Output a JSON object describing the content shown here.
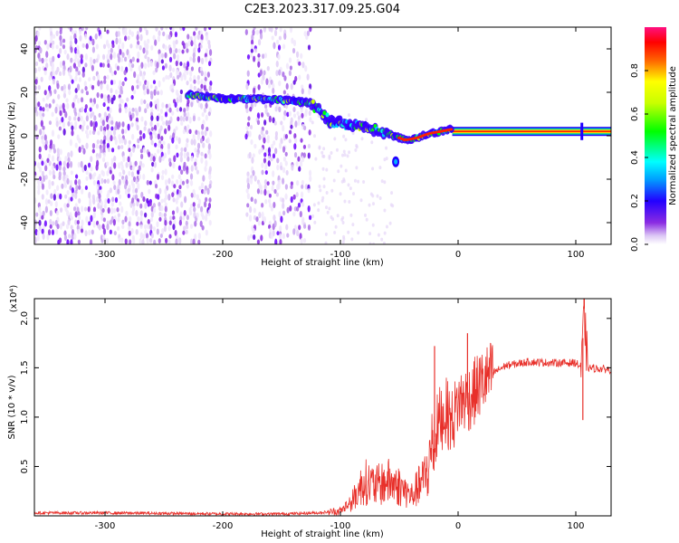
{
  "title": "C2E3.2023.317.09.25.G04",
  "chart_data": [
    {
      "type": "heatmap",
      "title": "C2E3.2023.317.09.25.G04",
      "xlabel": "Height of straight line (km)",
      "ylabel": "Frequency (Hz)",
      "xlim": [
        -360,
        130
      ],
      "ylim": [
        -50,
        50
      ],
      "x_ticks": [
        -300,
        -200,
        -100,
        0,
        100
      ],
      "y_ticks": [
        -40,
        -20,
        0,
        20,
        40
      ],
      "colorbar": {
        "label": "Normalized spectral amplitude",
        "range": [
          0,
          1
        ],
        "ticks": [
          0.0,
          0.2,
          0.4,
          0.6,
          0.8
        ]
      },
      "signal_trace": {
        "x": [
          -230,
          -200,
          -170,
          -140,
          -125,
          -110,
          -95,
          -80,
          -65,
          -55,
          -45,
          -35,
          -25,
          -15,
          -5,
          0,
          20,
          60,
          100,
          130
        ],
        "y": [
          19,
          17,
          17,
          16,
          15,
          7,
          5,
          4,
          2,
          0,
          -2,
          -1,
          1,
          2,
          3,
          2,
          2,
          2,
          2,
          2
        ]
      },
      "noise_regions": [
        [
          -360,
          -210
        ],
        [
          -180,
          -125
        ]
      ],
      "grid": false
    },
    {
      "type": "line",
      "xlabel": "Height of straight line (km)",
      "ylabel": "SNR (10 * v/v)",
      "y_scale_label": "(x10⁴)",
      "xlim": [
        -360,
        130
      ],
      "ylim": [
        0,
        2.2
      ],
      "x_ticks": [
        -300,
        -200,
        -100,
        0,
        100
      ],
      "y_ticks": [
        0.5,
        1.0,
        1.5,
        2.0
      ],
      "color": "#e8302a",
      "series": [
        {
          "x": [
            -360,
            -300,
            -200,
            -150,
            -120,
            -100,
            -90,
            -80,
            -70,
            -60,
            -50,
            -40,
            -30,
            -25,
            -20,
            -15,
            -10,
            -5,
            0,
            10,
            20,
            30,
            40,
            60,
            80,
            100,
            105,
            107,
            110,
            120,
            130
          ],
          "values": [
            0.03,
            0.03,
            0.02,
            0.02,
            0.03,
            0.05,
            0.15,
            0.35,
            0.3,
            0.35,
            0.3,
            0.2,
            0.35,
            0.5,
            0.8,
            1.0,
            1.05,
            0.95,
            1.15,
            1.2,
            1.35,
            1.45,
            1.52,
            1.56,
            1.55,
            1.55,
            1.5,
            2.1,
            1.5,
            1.49,
            1.48
          ]
        }
      ],
      "spikes": [
        {
          "x": -20,
          "y": 1.72
        },
        {
          "x": 8,
          "y": 1.85
        },
        {
          "x": 107,
          "y": 2.2
        },
        {
          "x": 106,
          "y": 0.97
        }
      ],
      "grid": false
    }
  ]
}
